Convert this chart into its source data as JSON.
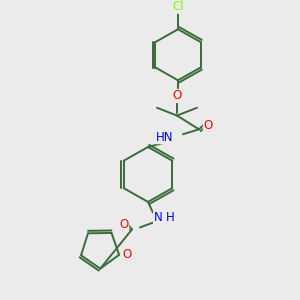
{
  "background_color": "#ebebeb",
  "bond_color": "#3a6b3a",
  "atom_colors": {
    "O": "#ff0000",
    "N": "#0000ee",
    "Cl": "#7fff00",
    "C": "#3a6b3a",
    "H": "#3a6b3a"
  },
  "figsize": [
    3.0,
    3.0
  ],
  "dpi": 100
}
